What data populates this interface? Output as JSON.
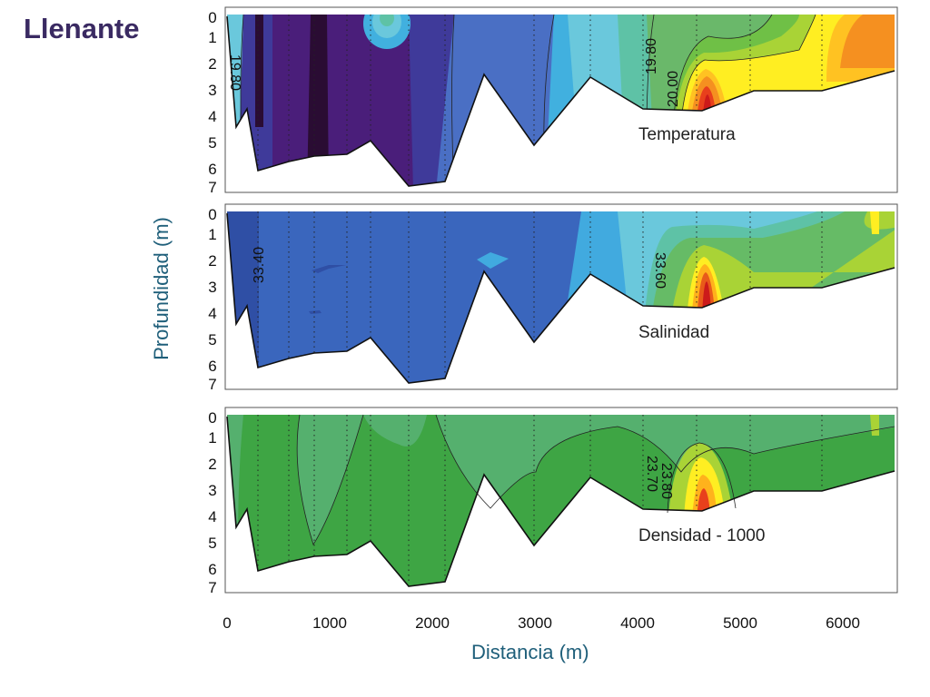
{
  "slide_title": "Llenante",
  "colors": {
    "temperature_scale": [
      "#2a0c33",
      "#4a1e7a",
      "#3f3a9a",
      "#3a54b8",
      "#4a6fc4",
      "#41b0df",
      "#6ac8dc",
      "#5ec2a6",
      "#6ab86a",
      "#6fc046",
      "#a9d336",
      "#ffee22",
      "#ffc222",
      "#f59020",
      "#e8401c",
      "#cc1a1a"
    ],
    "salinity_scale": [
      "#2f4fa5",
      "#3a66bd",
      "#41aadf",
      "#6ac8dc",
      "#5ec2a6",
      "#66bb66",
      "#a9d336",
      "#ffee22",
      "#ffb21c",
      "#e85a1a",
      "#cc1a1a"
    ],
    "density_scale": [
      "#3ea544",
      "#55b06e",
      "#a9d336",
      "#ffee22",
      "#ffb21c",
      "#e8401c"
    ]
  },
  "chart_data": [
    {
      "type": "heatmap",
      "title": "Temperatura",
      "xlabel": "Distancia (m)",
      "ylabel": "Profundidad (m)",
      "xlim": [
        0,
        6500
      ],
      "ylim": [
        7,
        0
      ],
      "x_ticks": [
        "0",
        "1000",
        "2000",
        "3000",
        "4000",
        "5000",
        "6000"
      ],
      "y_ticks": [
        "0",
        "1",
        "2",
        "3",
        "4",
        "5",
        "6",
        "7"
      ],
      "contour_labels": [
        "19.80",
        "19.80",
        "20.00"
      ],
      "bottom_profile": {
        "x": [
          0,
          100,
          200,
          300,
          600,
          850,
          1150,
          1430,
          1750,
          2100,
          2500,
          3000,
          3550,
          4050,
          4650,
          5050,
          5750,
          6500
        ],
        "depth": [
          0.2,
          4.4,
          3.8,
          6.1,
          5.8,
          5.6,
          5.5,
          5.1,
          6.5,
          6.4,
          2.5,
          5.1,
          2.6,
          3.7,
          3.8,
          3.1,
          3.1,
          2.4
        ]
      },
      "stations_x": [
        300,
        620,
        880,
        1150,
        1430,
        1780,
        2110,
        2990,
        3540,
        4070,
        4590,
        5110,
        5800
      ]
    },
    {
      "type": "heatmap",
      "title": "Salinidad",
      "xlabel": "Distancia (m)",
      "ylabel": "Profundidad (m)",
      "xlim": [
        0,
        6500
      ],
      "ylim": [
        7,
        0
      ],
      "x_ticks": [
        "0",
        "1000",
        "2000",
        "3000",
        "4000",
        "5000",
        "6000"
      ],
      "y_ticks": [
        "0",
        "1",
        "2",
        "3",
        "4",
        "5",
        "6",
        "7"
      ],
      "contour_labels": [
        "33.40",
        "33.60"
      ]
    },
    {
      "type": "heatmap",
      "title": "Densidad - 1000",
      "xlabel": "Distancia (m)",
      "ylabel": "Profundidad (m)",
      "xlim": [
        0,
        6500
      ],
      "ylim": [
        7,
        0
      ],
      "x_ticks": [
        "0",
        "1000",
        "2000",
        "3000",
        "4000",
        "5000",
        "6000"
      ],
      "y_ticks": [
        "0",
        "1",
        "2",
        "3",
        "4",
        "5",
        "6",
        "7"
      ],
      "contour_labels": [
        "23.80",
        "23.70"
      ]
    }
  ]
}
